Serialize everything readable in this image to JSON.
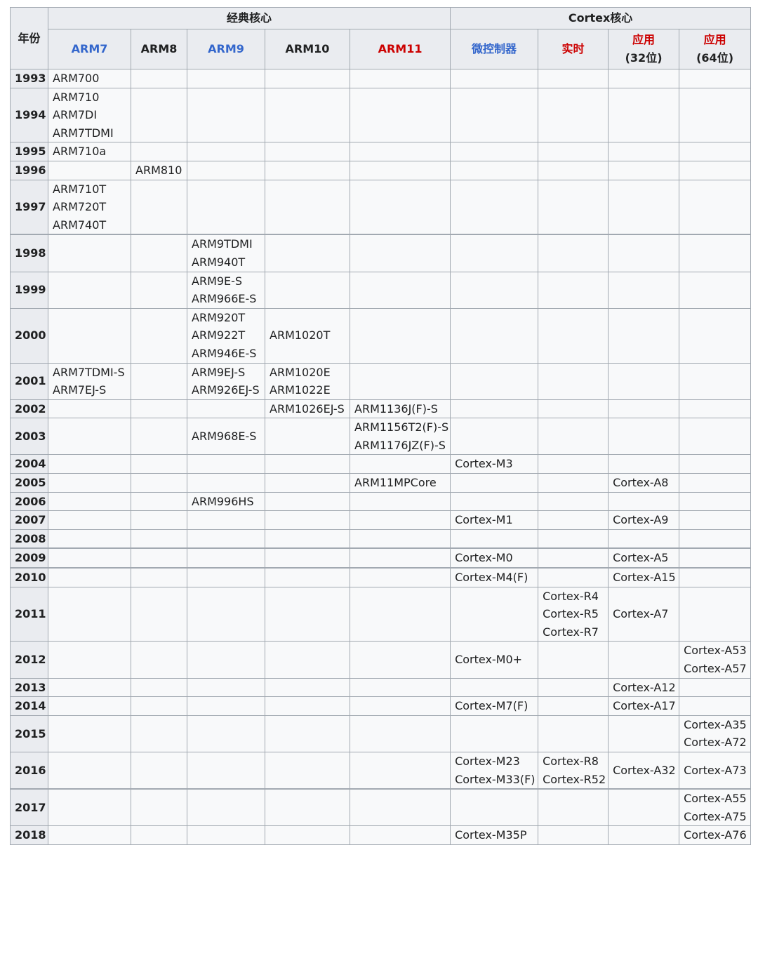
{
  "headers": {
    "year": "年份",
    "group_classic": "经典核心",
    "group_cortex": "Cortex核心",
    "columns": [
      {
        "key": "arm7",
        "label": [
          "ARM7"
        ],
        "color": "blue"
      },
      {
        "key": "arm8",
        "label": [
          "ARM8"
        ],
        "color": "default"
      },
      {
        "key": "arm9",
        "label": [
          "ARM9"
        ],
        "color": "blue"
      },
      {
        "key": "arm10",
        "label": [
          "ARM10"
        ],
        "color": "default"
      },
      {
        "key": "arm11",
        "label": [
          "ARM11"
        ],
        "color": "red"
      },
      {
        "key": "mcu",
        "label": [
          "微控制器"
        ],
        "color": "blue"
      },
      {
        "key": "rt",
        "label": [
          "实时"
        ],
        "color": "red"
      },
      {
        "key": "app32",
        "label": [
          "应用",
          "(32位)"
        ],
        "color": "red-default"
      },
      {
        "key": "app64",
        "label": [
          "应用",
          "(64位)"
        ],
        "color": "red-default"
      }
    ],
    "colors": {
      "blue": "#3366cc",
      "red": "#cc0000",
      "text": "#202122",
      "border": "#a2a9b1",
      "header_bg": "#eaecf0",
      "cell_bg": "#f8f9fa"
    }
  },
  "rows": [
    {
      "year": "1993",
      "cells": [
        [
          "ARM700"
        ],
        [],
        [],
        [],
        [],
        [],
        [],
        [],
        []
      ]
    },
    {
      "year": "1994",
      "cells": [
        [
          "ARM710",
          "ARM7DI",
          "ARM7TDMI"
        ],
        [],
        [],
        [],
        [],
        [],
        [],
        [],
        []
      ]
    },
    {
      "year": "1995",
      "cells": [
        [
          "ARM710a"
        ],
        [],
        [],
        [],
        [],
        [],
        [],
        [],
        []
      ]
    },
    {
      "year": "1996",
      "cells": [
        [],
        [
          "ARM810"
        ],
        [],
        [],
        [],
        [],
        [],
        [],
        []
      ]
    },
    {
      "year": "1997",
      "cells": [
        [
          "ARM710T",
          "ARM720T",
          "ARM740T"
        ],
        [],
        [],
        [],
        [],
        [],
        [],
        [],
        []
      ]
    },
    {
      "year": "1998",
      "cells": [
        [],
        [],
        [
          "ARM9TDMI",
          "ARM940T"
        ],
        [],
        [],
        [],
        [],
        [],
        []
      ]
    },
    {
      "year": "1999",
      "cells": [
        [],
        [],
        [
          "ARM9E-S",
          "ARM966E-S"
        ],
        [],
        [],
        [],
        [],
        [],
        []
      ]
    },
    {
      "year": "2000",
      "cells": [
        [],
        [],
        [
          "ARM920T",
          "ARM922T",
          "ARM946E-S"
        ],
        [
          "ARM1020T"
        ],
        [],
        [],
        [],
        [],
        []
      ]
    },
    {
      "year": "2001",
      "cells": [
        [
          "ARM7TDMI-S",
          "ARM7EJ-S"
        ],
        [],
        [
          "ARM9EJ-S",
          "ARM926EJ-S"
        ],
        [
          "ARM1020E",
          "ARM1022E"
        ],
        [],
        [],
        [],
        [],
        []
      ]
    },
    {
      "year": "2002",
      "cells": [
        [],
        [],
        [],
        [
          "ARM1026EJ-S"
        ],
        [
          "ARM1136J(F)-S"
        ],
        [],
        [],
        [],
        []
      ]
    },
    {
      "year": "2003",
      "cells": [
        [],
        [],
        [
          "ARM968E-S"
        ],
        [],
        [
          "ARM1156T2(F)-S",
          "ARM1176JZ(F)-S"
        ],
        [],
        [],
        [],
        []
      ]
    },
    {
      "year": "2004",
      "cells": [
        [],
        [],
        [],
        [],
        [],
        [
          "Cortex-M3"
        ],
        [],
        [],
        []
      ]
    },
    {
      "year": "2005",
      "cells": [
        [],
        [],
        [],
        [],
        [
          "ARM11MPCore"
        ],
        [],
        [],
        [
          "Cortex-A8"
        ],
        []
      ]
    },
    {
      "year": "2006",
      "cells": [
        [],
        [],
        [
          "ARM996HS"
        ],
        [],
        [],
        [],
        [],
        [],
        []
      ]
    },
    {
      "year": "2007",
      "cells": [
        [],
        [],
        [],
        [],
        [],
        [
          "Cortex-M1"
        ],
        [],
        [
          "Cortex-A9"
        ],
        []
      ]
    },
    {
      "year": "2008",
      "cells": [
        [],
        [],
        [],
        [],
        [],
        [],
        [],
        [],
        []
      ]
    },
    {
      "year": "2009",
      "cells": [
        [],
        [],
        [],
        [],
        [],
        [
          "Cortex-M0"
        ],
        [],
        [
          "Cortex-A5"
        ],
        []
      ]
    },
    {
      "year": "2010",
      "cells": [
        [],
        [],
        [],
        [],
        [],
        [
          "Cortex-M4(F)"
        ],
        [],
        [
          "Cortex-A15"
        ],
        []
      ]
    },
    {
      "year": "2011",
      "cells": [
        [],
        [],
        [],
        [],
        [],
        [],
        [
          "Cortex-R4",
          "Cortex-R5",
          "Cortex-R7"
        ],
        [
          "Cortex-A7"
        ],
        []
      ]
    },
    {
      "year": "2012",
      "cells": [
        [],
        [],
        [],
        [],
        [],
        [
          "Cortex-M0+"
        ],
        [],
        [],
        [
          "Cortex-A53",
          "Cortex-A57"
        ]
      ]
    },
    {
      "year": "2013",
      "cells": [
        [],
        [],
        [],
        [],
        [],
        [],
        [],
        [
          "Cortex-A12"
        ],
        []
      ]
    },
    {
      "year": "2014",
      "cells": [
        [],
        [],
        [],
        [],
        [],
        [
          "Cortex-M7(F)"
        ],
        [],
        [
          "Cortex-A17"
        ],
        []
      ]
    },
    {
      "year": "2015",
      "cells": [
        [],
        [],
        [],
        [],
        [],
        [],
        [],
        [],
        [
          "Cortex-A35",
          "Cortex-A72"
        ]
      ]
    },
    {
      "year": "2016",
      "cells": [
        [],
        [],
        [],
        [],
        [],
        [
          "Cortex-M23",
          "Cortex-M33(F)"
        ],
        [
          "Cortex-R8",
          "Cortex-R52"
        ],
        [
          "Cortex-A32"
        ],
        [
          "Cortex-A73"
        ]
      ]
    },
    {
      "year": "2017",
      "cells": [
        [],
        [],
        [],
        [],
        [],
        [],
        [],
        [],
        [
          "Cortex-A55",
          "Cortex-A75"
        ]
      ]
    },
    {
      "year": "2018",
      "cells": [
        [],
        [],
        [],
        [],
        [],
        [
          "Cortex-M35P"
        ],
        [],
        [],
        [
          "Cortex-A76"
        ]
      ]
    }
  ]
}
